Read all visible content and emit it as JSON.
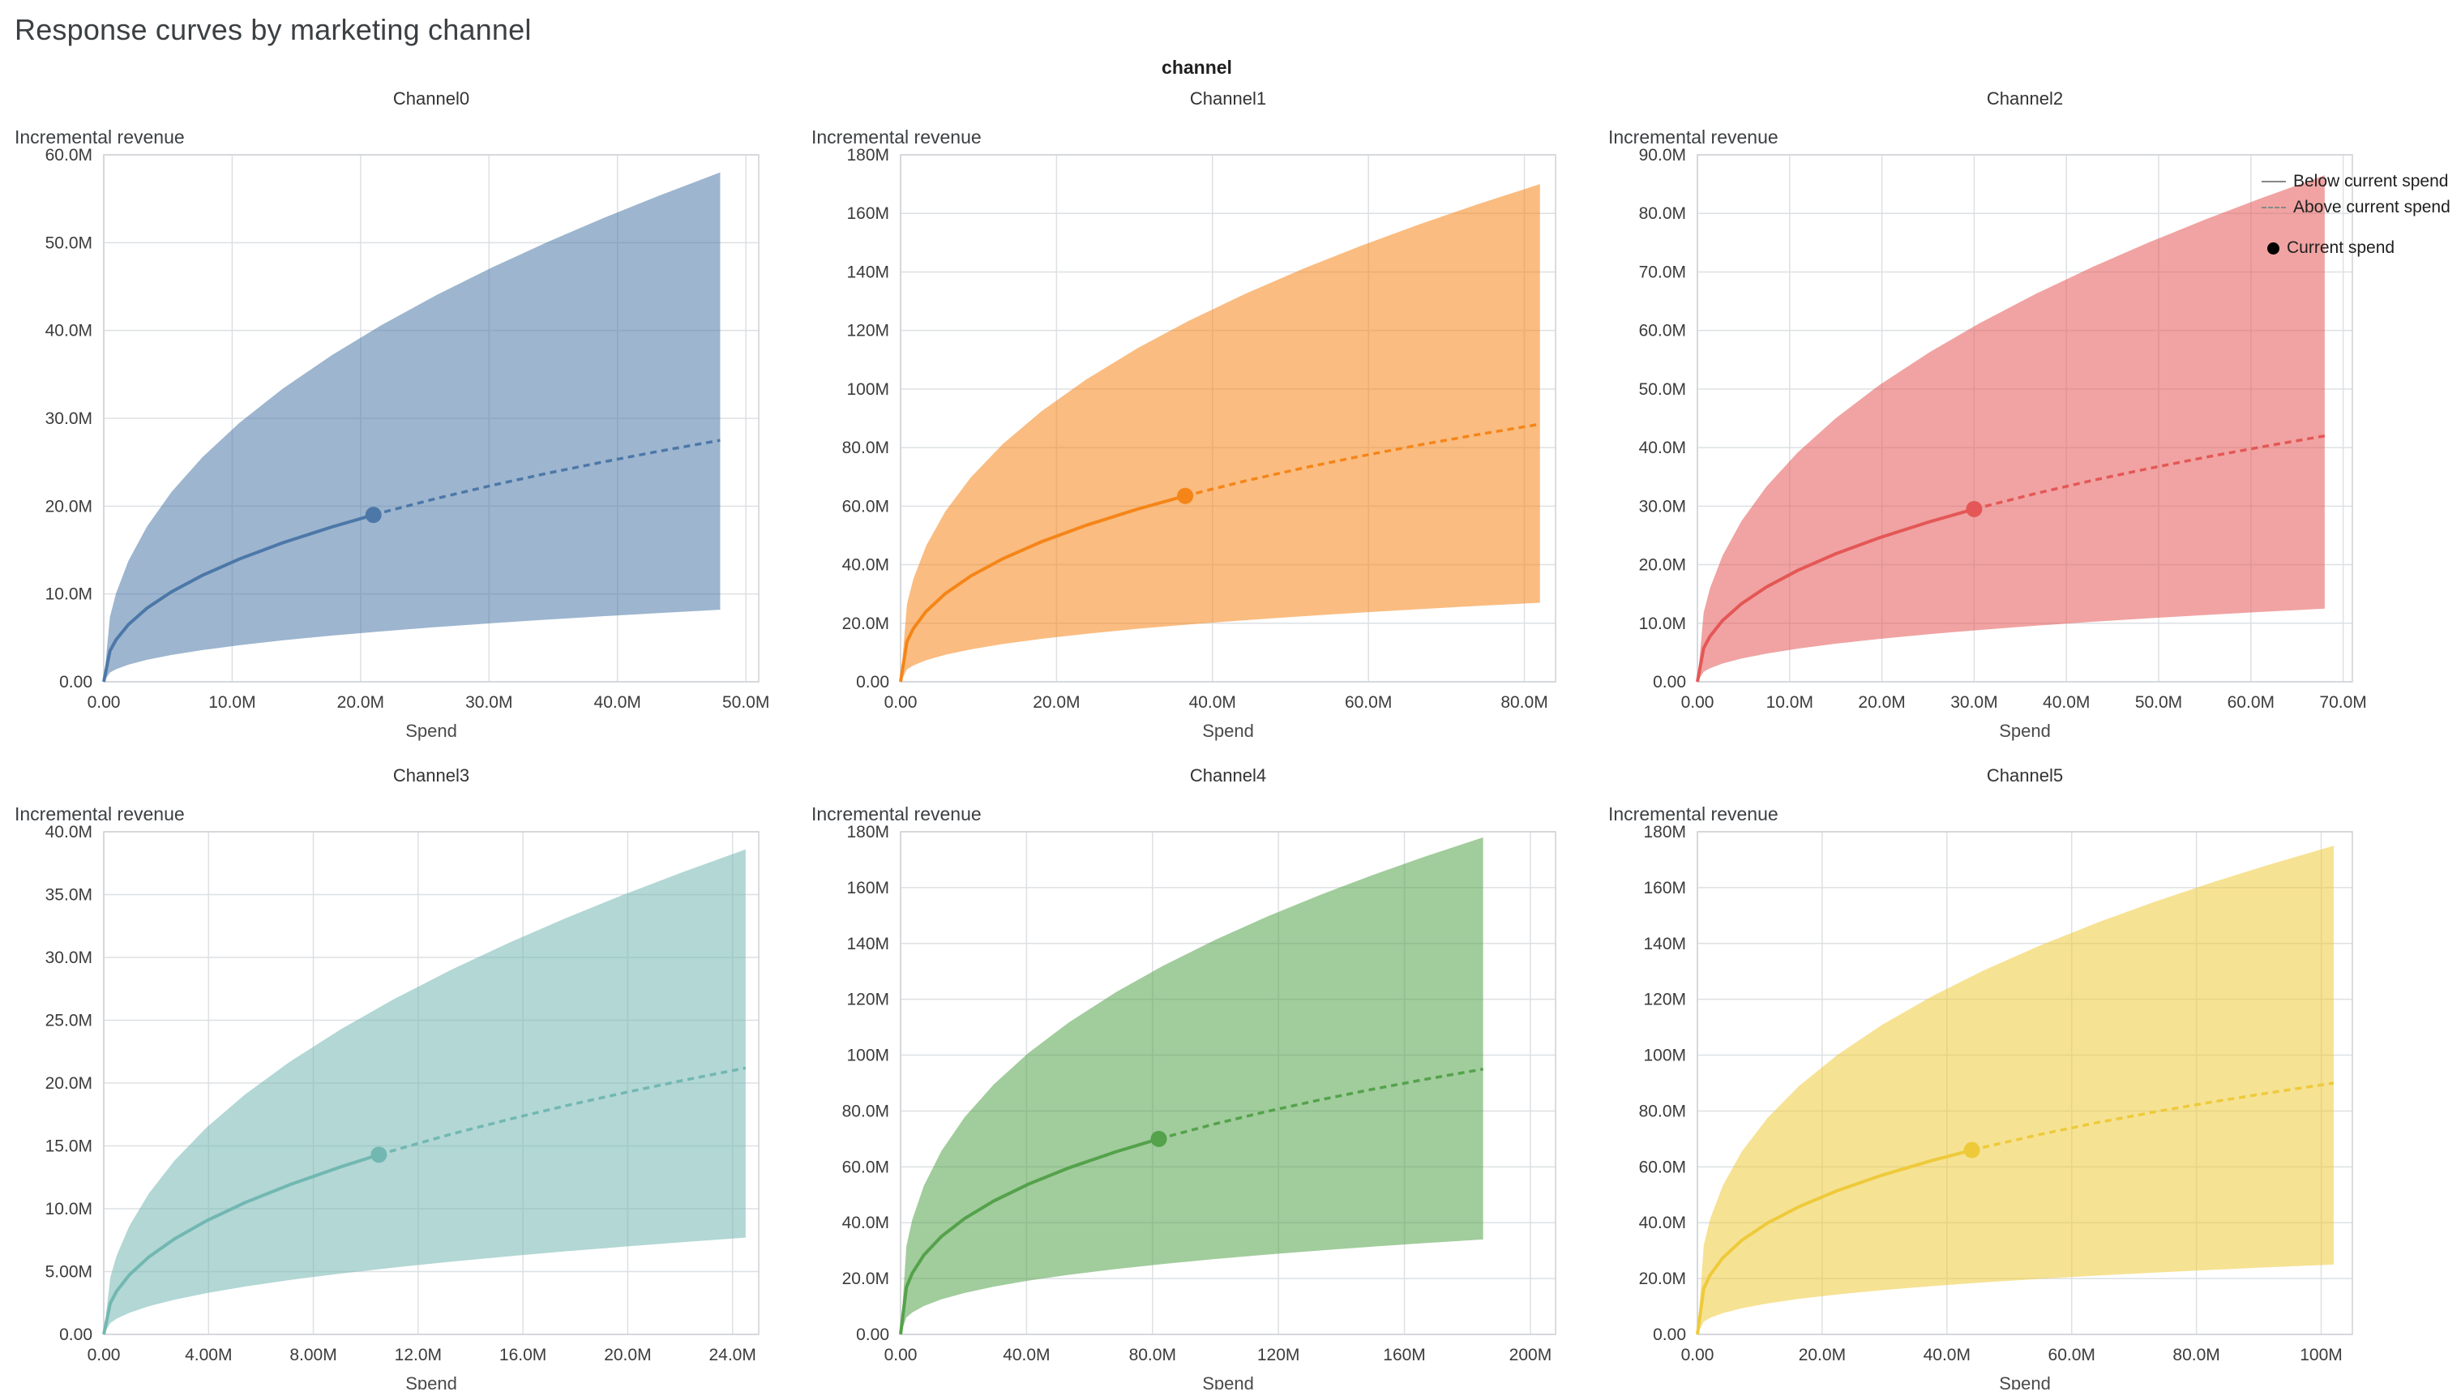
{
  "header": {
    "page_title": "Response curves by marketing channel",
    "facet_title": "channel"
  },
  "legend": {
    "items": [
      {
        "label": "Below current spend",
        "symbol": "solid-line"
      },
      {
        "label": "Above current spend",
        "symbol": "dashed-line"
      },
      {
        "label": "Current spend",
        "symbol": "dot"
      }
    ]
  },
  "chart_data": [
    {
      "type": "area",
      "title": "Channel0",
      "xlabel": "Spend",
      "ylabel": "Incremental revenue",
      "color": "#4c78a8",
      "xlim": [
        0,
        51
      ],
      "ylim": [
        0,
        60
      ],
      "x_ticks": [
        0,
        10,
        20,
        30,
        40,
        50
      ],
      "x_tick_labels": [
        "0.00",
        "10.0M",
        "20.0M",
        "30.0M",
        "40.0M",
        "50.0M"
      ],
      "y_ticks": [
        0,
        10,
        20,
        30,
        40,
        50,
        60
      ],
      "y_tick_labels": [
        "0.00",
        "10.0M",
        "20.0M",
        "30.0M",
        "40.0M",
        "50.0M",
        "60.0M"
      ],
      "current_spend": {
        "x": 21,
        "y": 19
      },
      "series": {
        "x": [
          0,
          0.48,
          0.96,
          1.92,
          3.36,
          5.28,
          7.68,
          10.56,
          13.92,
          17.76,
          21.6,
          25.92,
          30.24,
          34.56,
          38.88,
          43.2,
          48
        ],
        "mean": [
          0,
          3.51,
          4.79,
          6.52,
          8.38,
          10.25,
          12.12,
          13.98,
          15.82,
          17.63,
          19.25,
          20.88,
          22.37,
          23.75,
          25.03,
          26.24,
          27.5
        ],
        "upper": [
          0,
          7.4,
          10.09,
          13.76,
          17.67,
          21.62,
          25.57,
          29.48,
          33.36,
          37.19,
          40.59,
          44.04,
          47.18,
          50.08,
          52.79,
          55.33,
          58
        ],
        "lower": [
          0,
          1.05,
          1.43,
          1.95,
          2.5,
          3.06,
          3.61,
          4.17,
          4.72,
          5.26,
          5.74,
          6.23,
          6.67,
          7.08,
          7.46,
          7.82,
          8.2
        ]
      }
    },
    {
      "type": "area",
      "title": "Channel1",
      "xlabel": "Spend",
      "ylabel": "Incremental revenue",
      "color": "#f58518",
      "xlim": [
        0,
        84
      ],
      "ylim": [
        0,
        180
      ],
      "x_ticks": [
        0,
        20,
        40,
        60,
        80
      ],
      "x_tick_labels": [
        "0.00",
        "20.0M",
        "40.0M",
        "60.0M",
        "80.0M"
      ],
      "y_ticks": [
        0,
        20,
        40,
        60,
        80,
        100,
        120,
        140,
        160,
        180
      ],
      "y_tick_labels": [
        "0.00",
        "20.0M",
        "40.0M",
        "60.0M",
        "80.0M",
        "100M",
        "120M",
        "140M",
        "160M",
        "180M"
      ],
      "current_spend": {
        "x": 36.5,
        "y": 63.5
      },
      "series": {
        "x": [
          0,
          0.82,
          1.64,
          3.28,
          5.74,
          9.02,
          13.12,
          18.04,
          23.78,
          30.34,
          36.9,
          44.28,
          51.66,
          59.04,
          66.42,
          73.8,
          82
        ],
        "mean": [
          0,
          13.75,
          18.19,
          24.05,
          30.13,
          36.16,
          42.05,
          47.8,
          53.43,
          58.95,
          63.78,
          68.65,
          73.05,
          77.09,
          80.84,
          84.34,
          88
        ],
        "upper": [
          0,
          26.57,
          35.14,
          46.46,
          58.21,
          69.85,
          81.23,
          92.34,
          103.22,
          113.88,
          123.22,
          132.62,
          141.12,
          148.92,
          156.16,
          162.93,
          170
        ],
        "lower": [
          0,
          4.22,
          5.58,
          7.38,
          9.24,
          11.09,
          12.9,
          14.67,
          16.39,
          18.09,
          19.57,
          21.06,
          22.41,
          23.65,
          24.8,
          25.88,
          27
        ]
      }
    },
    {
      "type": "area",
      "title": "Channel2",
      "xlabel": "Spend",
      "ylabel": "Incremental revenue",
      "color": "#e45756",
      "xlim": [
        0,
        71
      ],
      "ylim": [
        0,
        90
      ],
      "x_ticks": [
        0,
        10,
        20,
        30,
        40,
        50,
        60,
        70
      ],
      "x_tick_labels": [
        "0.00",
        "10.0M",
        "20.0M",
        "30.0M",
        "40.0M",
        "50.0M",
        "60.0M",
        "70.0M"
      ],
      "y_ticks": [
        0,
        10,
        20,
        30,
        40,
        50,
        60,
        70,
        80,
        90
      ],
      "y_tick_labels": [
        "0.00",
        "10.0M",
        "20.0M",
        "30.0M",
        "40.0M",
        "50.0M",
        "60.0M",
        "70.0M",
        "80.0M",
        "90.0M"
      ],
      "current_spend": {
        "x": 30,
        "y": 29.5
      },
      "series": {
        "x": [
          0,
          0.68,
          1.36,
          2.72,
          4.76,
          7.48,
          10.88,
          14.96,
          19.72,
          25.16,
          30.6,
          36.72,
          42.84,
          48.96,
          55.08,
          61.2,
          68
        ],
        "mean": [
          0,
          5.75,
          7.75,
          10.45,
          13.31,
          16.19,
          19.03,
          21.84,
          24.6,
          27.33,
          29.74,
          32.18,
          34.4,
          36.44,
          38.35,
          40.13,
          42
        ],
        "upper": [
          0,
          11.83,
          15.96,
          21.53,
          27.42,
          33.34,
          39.19,
          44.97,
          50.67,
          56.29,
          61.26,
          66.28,
          70.85,
          75.06,
          78.97,
          82.65,
          86.5
        ],
        "lower": [
          0,
          1.71,
          2.31,
          3.11,
          3.96,
          4.82,
          5.66,
          6.5,
          7.32,
          8.14,
          8.85,
          9.58,
          10.24,
          10.85,
          11.41,
          11.94,
          12.5
        ]
      }
    },
    {
      "type": "area",
      "title": "Channel3",
      "xlabel": "Spend",
      "ylabel": "Incremental revenue",
      "color": "#72b7b2",
      "xlim": [
        0,
        25
      ],
      "ylim": [
        0,
        40
      ],
      "x_ticks": [
        0,
        4,
        8,
        12,
        16,
        20,
        24
      ],
      "x_tick_labels": [
        "0.00",
        "4.00M",
        "8.00M",
        "12.0M",
        "16.0M",
        "20.0M",
        "24.0M"
      ],
      "y_ticks": [
        0,
        5,
        10,
        15,
        20,
        25,
        30,
        35,
        40
      ],
      "y_tick_labels": [
        "0.00",
        "5.00M",
        "10.0M",
        "15.0M",
        "20.0M",
        "25.0M",
        "30.0M",
        "35.0M",
        "40.0M"
      ],
      "current_spend": {
        "x": 10.5,
        "y": 14.3
      },
      "series": {
        "x": [
          0,
          0.25,
          0.49,
          0.98,
          1.72,
          2.7,
          3.92,
          5.39,
          7.11,
          9.07,
          11.03,
          13.23,
          15.44,
          17.64,
          19.85,
          22.05,
          24.5
        ],
        "mean": [
          0,
          2.49,
          3.44,
          4.74,
          6.16,
          7.6,
          9.04,
          10.49,
          11.92,
          13.35,
          14.62,
          15.92,
          17.1,
          18.2,
          19.22,
          20.19,
          21.2
        ],
        "upper": [
          0,
          4.54,
          6.26,
          8.64,
          11.21,
          13.83,
          16.46,
          19.09,
          21.71,
          24.31,
          26.63,
          28.98,
          31.14,
          33.13,
          35.0,
          36.75,
          38.6
        ],
        "lower": [
          0,
          0.9,
          1.25,
          1.72,
          2.24,
          2.76,
          3.28,
          3.81,
          4.33,
          4.85,
          5.31,
          5.78,
          6.21,
          6.61,
          6.98,
          7.33,
          7.7
        ]
      }
    },
    {
      "type": "area",
      "title": "Channel4",
      "xlabel": "Spend",
      "ylabel": "Incremental revenue",
      "color": "#54a24b",
      "xlim": [
        0,
        208
      ],
      "ylim": [
        0,
        180
      ],
      "x_ticks": [
        0,
        40,
        80,
        120,
        160,
        200
      ],
      "x_tick_labels": [
        "0.00",
        "40.0M",
        "80.0M",
        "120M",
        "160M",
        "200M"
      ],
      "y_ticks": [
        0,
        20,
        40,
        60,
        80,
        100,
        120,
        140,
        160,
        180
      ],
      "y_tick_labels": [
        "0.00",
        "20.0M",
        "40.0M",
        "60.0M",
        "80.0M",
        "100M",
        "120M",
        "140M",
        "160M",
        "180M"
      ],
      "current_spend": {
        "x": 82,
        "y": 70
      },
      "series": {
        "x": [
          0,
          1.85,
          3.7,
          7.4,
          12.95,
          20.35,
          29.6,
          40.7,
          53.65,
          68.45,
          83.25,
          99.9,
          116.55,
          133.2,
          149.85,
          166.5,
          185
        ],
        "mean": [
          0,
          16.89,
          21.92,
          28.41,
          35.05,
          41.52,
          47.79,
          53.85,
          59.72,
          65.43,
          70.42,
          75.4,
          79.89,
          83.99,
          87.78,
          91.32,
          95
        ],
        "upper": [
          0,
          31.65,
          41.06,
          53.22,
          65.66,
          77.8,
          89.53,
          100.89,
          111.89,
          122.59,
          131.95,
          141.28,
          149.68,
          157.37,
          164.47,
          171.11,
          178
        ],
        "lower": [
          0,
          6.05,
          7.84,
          10.17,
          12.54,
          14.86,
          17.1,
          19.27,
          21.37,
          23.42,
          25.2,
          26.99,
          28.59,
          30.06,
          31.42,
          32.68,
          34
        ]
      }
    },
    {
      "type": "area",
      "title": "Channel5",
      "xlabel": "Spend",
      "ylabel": "Incremental revenue",
      "color": "#eeca3b",
      "xlim": [
        0,
        105
      ],
      "ylim": [
        0,
        180
      ],
      "x_ticks": [
        0,
        20,
        40,
        60,
        80,
        100
      ],
      "x_tick_labels": [
        "0.00",
        "20.0M",
        "40.0M",
        "60.0M",
        "80.0M",
        "100M"
      ],
      "y_ticks": [
        0,
        20,
        40,
        60,
        80,
        100,
        120,
        140,
        160,
        180
      ],
      "y_tick_labels": [
        "0.00",
        "20.0M",
        "40.0M",
        "60.0M",
        "80.0M",
        "100M",
        "120M",
        "140M",
        "160M",
        "180M"
      ],
      "current_spend": {
        "x": 44,
        "y": 66
      },
      "series": {
        "x": [
          0,
          1.02,
          2.04,
          4.08,
          7.14,
          11.22,
          16.32,
          22.44,
          29.58,
          37.74,
          45.9,
          55.08,
          64.26,
          73.44,
          82.62,
          91.8,
          102
        ],
        "mean": [
          0,
          16.45,
          21.25,
          27.44,
          33.73,
          39.85,
          45.77,
          51.48,
          57.0,
          62.36,
          67.03,
          71.69,
          75.9,
          79.73,
          83.27,
          86.56,
          90
        ],
        "upper": [
          0,
          31.99,
          41.32,
          53.36,
          65.59,
          77.49,
          89.01,
          100.1,
          110.83,
          121.26,
          130.34,
          139.41,
          147.58,
          155.03,
          161.91,
          168.32,
          175
        ],
        "lower": [
          0,
          4.57,
          5.9,
          7.62,
          9.37,
          11.07,
          12.72,
          14.3,
          15.83,
          17.32,
          18.62,
          19.92,
          21.08,
          22.15,
          23.13,
          24.05,
          25
        ]
      }
    }
  ]
}
